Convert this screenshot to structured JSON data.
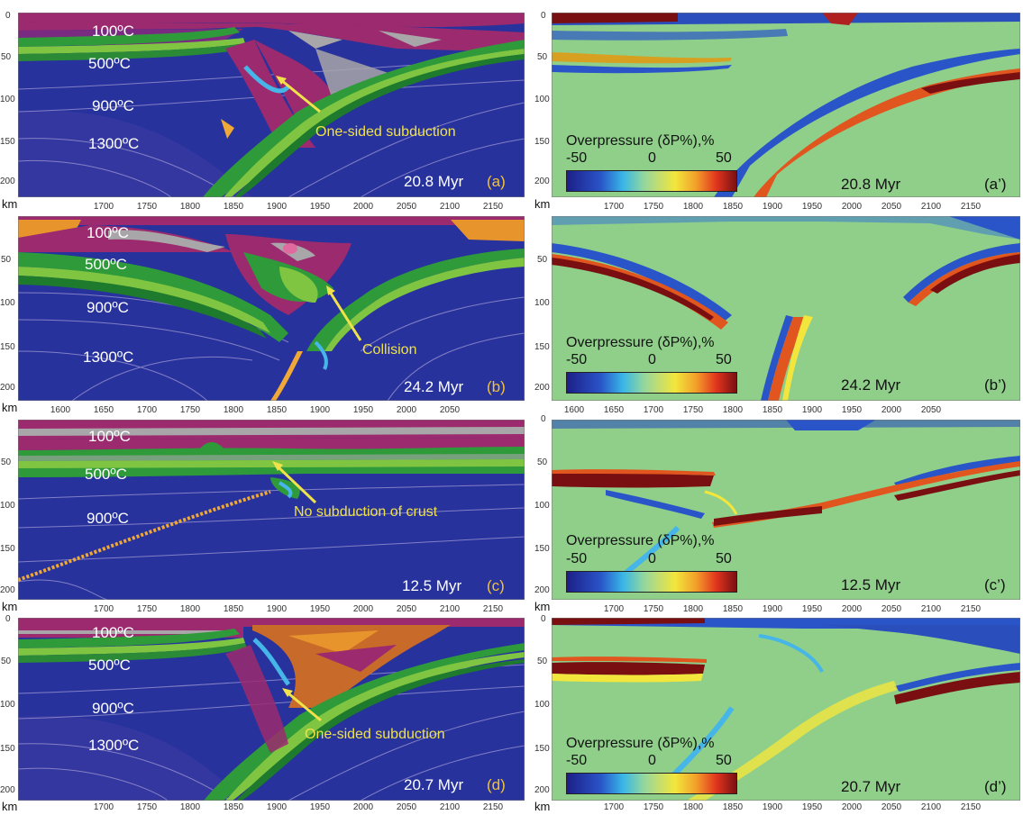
{
  "units": "km",
  "colorbar": {
    "title": "Overpressure (δP%),%",
    "ticks": [
      "-50",
      "0",
      "50"
    ]
  },
  "rows": [
    {
      "left": {
        "temps": [
          "100ºC",
          "500ºC",
          "900ºC",
          "1300ºC"
        ],
        "annotation": "One-sided subduction",
        "time": "20.8 Myr",
        "tag": "(a)",
        "yticks": [
          "0",
          "50",
          "100",
          "150",
          "200"
        ],
        "xticks": [
          "1700",
          "1750",
          "1800",
          "1850",
          "1900",
          "1950",
          "2000",
          "2050",
          "2100",
          "2150"
        ]
      },
      "right": {
        "time": "20.8 Myr",
        "tag": "(a’)",
        "yticks": [
          "0",
          "50",
          "100",
          "150",
          "200"
        ],
        "xticks": [
          "1700",
          "1750",
          "1800",
          "1850",
          "1900",
          "1950",
          "2000",
          "2050",
          "2100",
          "2150"
        ]
      }
    },
    {
      "left": {
        "temps": [
          "100ºC",
          "500ºC",
          "900ºC",
          "1300ºC"
        ],
        "annotation": "Collision",
        "time": "24.2 Myr",
        "tag": "(b)",
        "yticks": [
          "0",
          "50",
          "100",
          "150",
          "200"
        ],
        "xticks": [
          "1600",
          "1650",
          "1700",
          "1750",
          "1800",
          "1850",
          "1900",
          "1950",
          "2000",
          "2050"
        ]
      },
      "right": {
        "time": "24.2 Myr",
        "tag": "(b’)",
        "yticks": [
          "0",
          "50",
          "100",
          "150",
          "200"
        ],
        "xticks": [
          "1600",
          "1650",
          "1700",
          "1750",
          "1800",
          "1850",
          "1900",
          "1950",
          "2000",
          "2050"
        ]
      }
    },
    {
      "left": {
        "temps": [
          "100ºC",
          "500ºC",
          "900ºC"
        ],
        "annotation": "No subduction of crust",
        "time": "12.5 Myr",
        "tag": "(c)",
        "yticks": [
          "0",
          "50",
          "100",
          "150",
          "200"
        ],
        "xticks": [
          "1700",
          "1750",
          "1800",
          "1850",
          "1900",
          "1950",
          "2000",
          "2050",
          "2100",
          "2150"
        ]
      },
      "right": {
        "time": "12.5 Myr",
        "tag": "(c’)",
        "yticks": [
          "0",
          "50",
          "100",
          "150",
          "200"
        ],
        "xticks": [
          "1700",
          "1750",
          "1800",
          "1850",
          "1900",
          "1950",
          "2000",
          "2050",
          "2100",
          "2150"
        ]
      }
    },
    {
      "left": {
        "temps": [
          "100ºC",
          "500ºC",
          "900ºC",
          "1300ºC"
        ],
        "annotation": "One-sided subduction",
        "time": "20.7 Myr",
        "tag": "(d)",
        "yticks": [
          "0",
          "50",
          "100",
          "150",
          "200"
        ],
        "xticks": [
          "1700",
          "1750",
          "1800",
          "1850",
          "1900",
          "1950",
          "2000",
          "2050",
          "2100",
          "2150"
        ]
      },
      "right": {
        "time": "20.7 Myr",
        "tag": "(d’)",
        "yticks": [
          "0",
          "50",
          "100",
          "150",
          "200"
        ],
        "xticks": [
          "1700",
          "1750",
          "1800",
          "1850",
          "1900",
          "1950",
          "2000",
          "2050",
          "2100",
          "2150"
        ]
      }
    }
  ]
}
